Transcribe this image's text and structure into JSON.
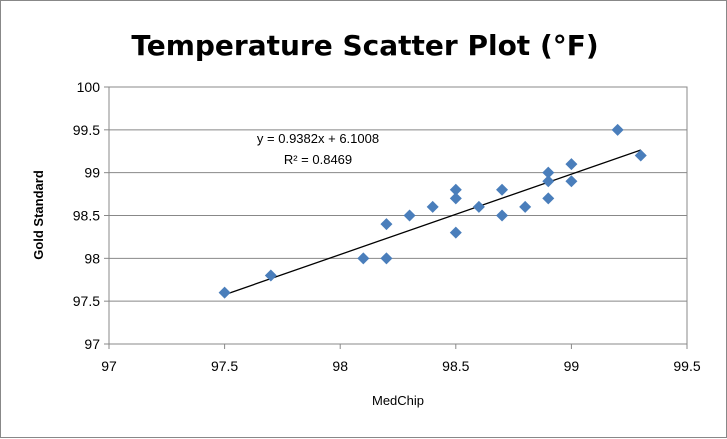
{
  "chart_data": {
    "type": "scatter",
    "title": "Temperature Scatter Plot (°F)",
    "xlabel": "MedChip",
    "ylabel": "Gold Standard",
    "xlim": [
      97,
      99.5
    ],
    "ylim": [
      97,
      100
    ],
    "xticks": [
      "97",
      "97.5",
      "98",
      "98.5",
      "99",
      "99.5"
    ],
    "yticks": [
      "97",
      "97.5",
      "98",
      "98.5",
      "99",
      "99.5",
      "100"
    ],
    "grid": "horizontal",
    "marker_color": "#4a7ebb",
    "marker": "diamond",
    "points": [
      [
        97.5,
        97.6
      ],
      [
        97.7,
        97.8
      ],
      [
        98.1,
        98.0
      ],
      [
        98.2,
        98.0
      ],
      [
        98.2,
        98.4
      ],
      [
        98.3,
        98.5
      ],
      [
        98.4,
        98.6
      ],
      [
        98.5,
        98.8
      ],
      [
        98.5,
        98.7
      ],
      [
        98.5,
        98.3
      ],
      [
        98.6,
        98.6
      ],
      [
        98.7,
        98.8
      ],
      [
        98.7,
        98.5
      ],
      [
        98.8,
        98.6
      ],
      [
        98.9,
        99.0
      ],
      [
        98.9,
        98.9
      ],
      [
        98.9,
        98.7
      ],
      [
        99.0,
        99.1
      ],
      [
        99.0,
        98.9
      ],
      [
        99.2,
        99.5
      ],
      [
        99.3,
        99.2
      ]
    ],
    "trendline": {
      "type": "linear",
      "slope": 0.9382,
      "intercept": 6.1008,
      "x_range": [
        97.5,
        99.3
      ],
      "color": "#000000",
      "equation_label": "y = 0.9382x + 6.1008",
      "r2_label": "R² = 0.8469"
    }
  }
}
